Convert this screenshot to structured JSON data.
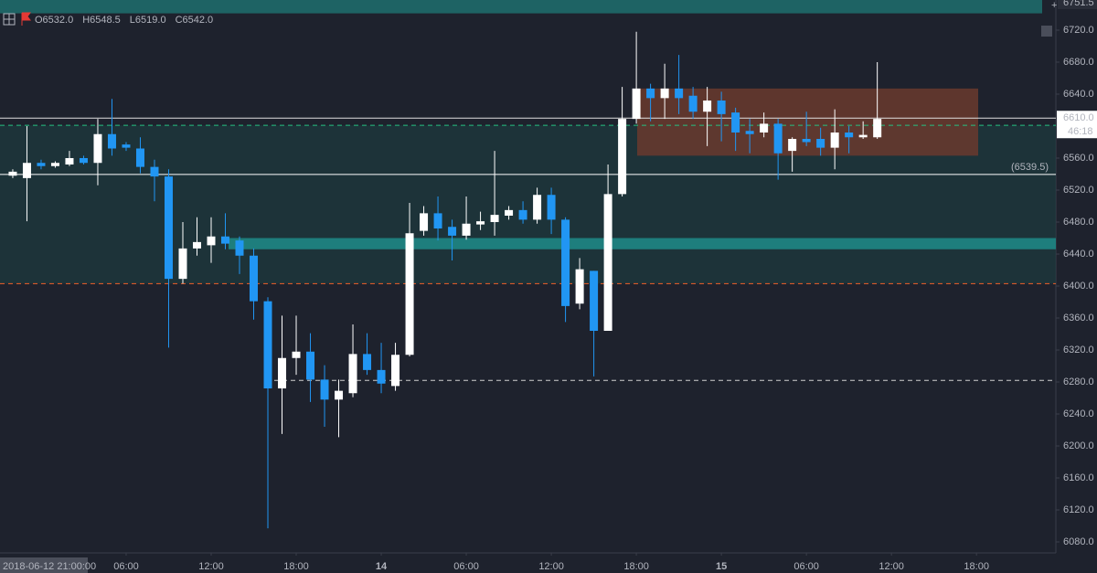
{
  "chart_data": {
    "type": "candlestick",
    "header": [
      "O6532.0",
      "H6548.5",
      "L6519.0",
      "C6542.0"
    ],
    "crosshair_time": "2018-06-12 21:00:00",
    "top_label": "6751.5",
    "up_color": "#ffffff",
    "down_color": "#2196f3",
    "open": [
      6538,
      6535,
      6554,
      6550,
      6552,
      6560,
      6554,
      6590,
      6577,
      6572,
      6549,
      6537,
      6409,
      6447,
      6451,
      6462,
      6457,
      6438,
      6381,
      6272,
      6310,
      6318,
      6283,
      6258,
      6266,
      6315,
      6295,
      6275,
      6314,
      6469,
      6491,
      6474,
      6463,
      6477,
      6480,
      6488,
      6495,
      6483,
      6514,
      6483,
      6378,
      6419,
      6344,
      6515,
      6609,
      6647,
      6635,
      6647,
      6638,
      6618,
      6632,
      6617,
      6594,
      6592,
      6603,
      6569,
      6584,
      6584,
      6573,
      6592,
      6586,
      6586
    ],
    "high": [
      6546,
      6600,
      6558,
      6556,
      6569,
      6563,
      6609,
      6634,
      6580,
      6586,
      6558,
      6546,
      6480,
      6486,
      6486,
      6491,
      6462,
      6447,
      6386,
      6363,
      6363,
      6341,
      6301,
      6283,
      6352,
      6341,
      6329,
      6329,
      6504,
      6500,
      6512,
      6483,
      6512,
      6493,
      6569,
      6500,
      6506,
      6523,
      6523,
      6486,
      6435,
      6419,
      6552,
      6649,
      6718,
      6653,
      6678,
      6689,
      6649,
      6649,
      6643,
      6623,
      6609,
      6617,
      6609,
      6586,
      6618,
      6598,
      6621,
      6600,
      6606,
      6680
    ],
    "low": [
      6535,
      6481,
      6546,
      6548,
      6550,
      6552,
      6526,
      6563,
      6569,
      6541,
      6506,
      6323,
      6403,
      6438,
      6429,
      6446,
      6415,
      6358,
      6097,
      6215,
      6289,
      6255,
      6224,
      6211,
      6261,
      6289,
      6266,
      6269,
      6312,
      6463,
      6457,
      6432,
      6458,
      6470,
      6463,
      6483,
      6478,
      6478,
      6465,
      6355,
      6371,
      6287,
      6344,
      6512,
      6603,
      6606,
      6609,
      6615,
      6609,
      6575,
      6581,
      6569,
      6566,
      6586,
      6533,
      6543,
      6575,
      6563,
      6546,
      6566,
      6584,
      6584
    ],
    "close": [
      6543,
      6554,
      6550,
      6554,
      6560,
      6554,
      6590,
      6572,
      6573,
      6549,
      6537,
      6409,
      6447,
      6455,
      6462,
      6453,
      6438,
      6381,
      6272,
      6310,
      6318,
      6283,
      6258,
      6269,
      6315,
      6295,
      6278,
      6314,
      6466,
      6491,
      6472,
      6463,
      6478,
      6481,
      6489,
      6495,
      6483,
      6514,
      6483,
      6375,
      6421,
      6344,
      6515,
      6609,
      6647,
      6635,
      6647,
      6635,
      6618,
      6632,
      6615,
      6592,
      6590,
      6603,
      6566,
      6584,
      6580,
      6573,
      6592,
      6586,
      6589,
      6609
    ],
    "xlim": [
      -0.9,
      73.6
    ],
    "xticks": [
      {
        "value": 8,
        "label": "06:00"
      },
      {
        "value": 14,
        "label": "12:00"
      },
      {
        "value": 20,
        "label": "18:00"
      },
      {
        "value": 26,
        "label": "14"
      },
      {
        "value": 32,
        "label": "06:00"
      },
      {
        "value": 38,
        "label": "12:00"
      },
      {
        "value": 44,
        "label": "18:00"
      },
      {
        "value": 50,
        "label": "15"
      },
      {
        "value": 56,
        "label": "06:00"
      },
      {
        "value": 62,
        "label": "12:00"
      },
      {
        "value": 68,
        "label": "18:00"
      }
    ],
    "ylim": [
      6066.3,
      6757.7
    ],
    "yticks": [
      {
        "value": 6080,
        "label": "6080.0"
      },
      {
        "value": 6120,
        "label": "6120.0"
      },
      {
        "value": 6160,
        "label": "6160.0"
      },
      {
        "value": 6200,
        "label": "6200.0"
      },
      {
        "value": 6240,
        "label": "6240.0"
      },
      {
        "value": 6280,
        "label": "6280.0"
      },
      {
        "value": 6320,
        "label": "6320.0"
      },
      {
        "value": 6360,
        "label": "6360.0"
      },
      {
        "value": 6400,
        "label": "6400.0"
      },
      {
        "value": 6440,
        "label": "6440.0"
      },
      {
        "value": 6480,
        "label": "6480.0"
      },
      {
        "value": 6520,
        "label": "6520.0"
      },
      {
        "value": 6560,
        "label": "6560.0"
      },
      {
        "value": 6600,
        "label": "6600.0"
      },
      {
        "value": 6640,
        "label": "6640.0"
      },
      {
        "value": 6680,
        "label": "6680.0"
      },
      {
        "value": 6720,
        "label": "6720.0"
      }
    ],
    "last_price": {
      "value": 6610,
      "label": "6610.0"
    },
    "countdown": "46:18",
    "zones": [
      {
        "low": 6403,
        "high": 6601,
        "color": "#1d3a3e"
      },
      {
        "low": 6446,
        "high": 6460,
        "color": "#1e8c8a"
      },
      {
        "low": 6563,
        "high": 6647,
        "color": "#6a3a2e"
      },
      {
        "low": 6741,
        "high": 6760,
        "color": "#1e6e6e"
      }
    ],
    "levels": [
      {
        "value": 6601,
        "color": "#26c281",
        "dash": true
      },
      {
        "value": 6403,
        "color": "#f0602a",
        "dash": true
      },
      {
        "value": 6282,
        "color": "#d0d0d0",
        "dash": true
      },
      {
        "value": 6539.5,
        "label": "(6539.5)",
        "color": "#ffffff",
        "dash": false
      }
    ]
  }
}
